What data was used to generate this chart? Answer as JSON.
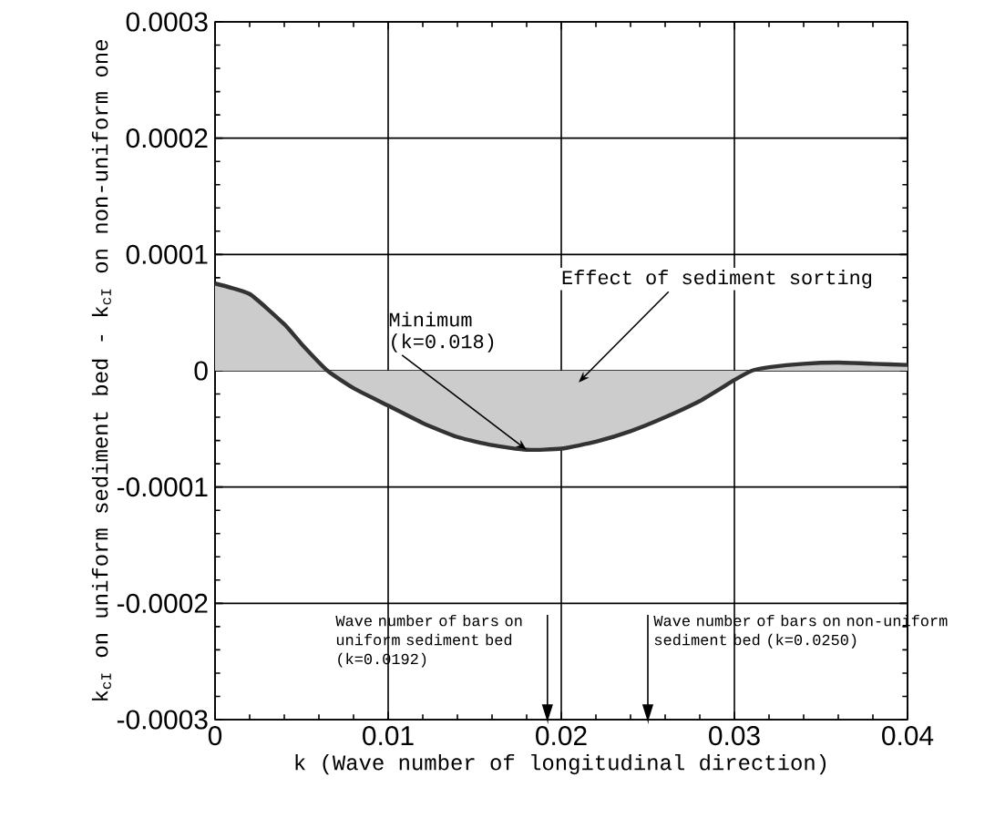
{
  "chart_data": {
    "type": "area",
    "xlabel": "k (Wave number of longitudinal direction)",
    "ylabel": "k$_{cI}$ on uniform sediment bed - k$_{cI}$ on non-uniform one",
    "x": [
      0,
      0.002,
      0.004,
      0.005,
      0.0065,
      0.008,
      0.01,
      0.012,
      0.014,
      0.016,
      0.018,
      0.02,
      0.022,
      0.024,
      0.026,
      0.028,
      0.03,
      0.031,
      0.032,
      0.034,
      0.036,
      0.038,
      0.04
    ],
    "series": [
      {
        "color": "#333333",
        "values": [
          7.5e-05,
          6.6e-05,
          4e-05,
          2.3e-05,
          0,
          -1.5e-05,
          -3e-05,
          -4.5e-05,
          -5.7e-05,
          -6.4e-05,
          -6.8e-05,
          -6.7e-05,
          -6.1e-05,
          -5.2e-05,
          -4e-05,
          -2.6e-05,
          -8e-06,
          0,
          3e-06,
          6e-06,
          7e-06,
          6e-06,
          5e-06
        ]
      }
    ],
    "xlim": [
      0,
      0.04
    ],
    "xticks": [
      0,
      0.01,
      0.02,
      0.03,
      0.04
    ],
    "ylim": [
      -0.0003,
      0.0003
    ],
    "yticks": [
      -0.0003,
      -0.0002,
      -0.0001,
      0,
      0.0001,
      0.0002,
      0.0003
    ],
    "grid": true,
    "marker": "none",
    "line_style": "solid",
    "annotations": [
      {
        "text": "Minimum (k=0.018)",
        "x": 0.018,
        "y": -6.8e-05
      },
      "Effect of sediment sorting"
    ],
    "ref_lines": [
      {
        "axis": "x",
        "value": 0.0192,
        "label": "Wave number of bars on uniform sediment bed (k=0.0192)"
      },
      {
        "axis": "x",
        "value": 0.025,
        "label": "Wave number of bars on non-uniform sediment bed (k=0.0250)"
      }
    ]
  }
}
